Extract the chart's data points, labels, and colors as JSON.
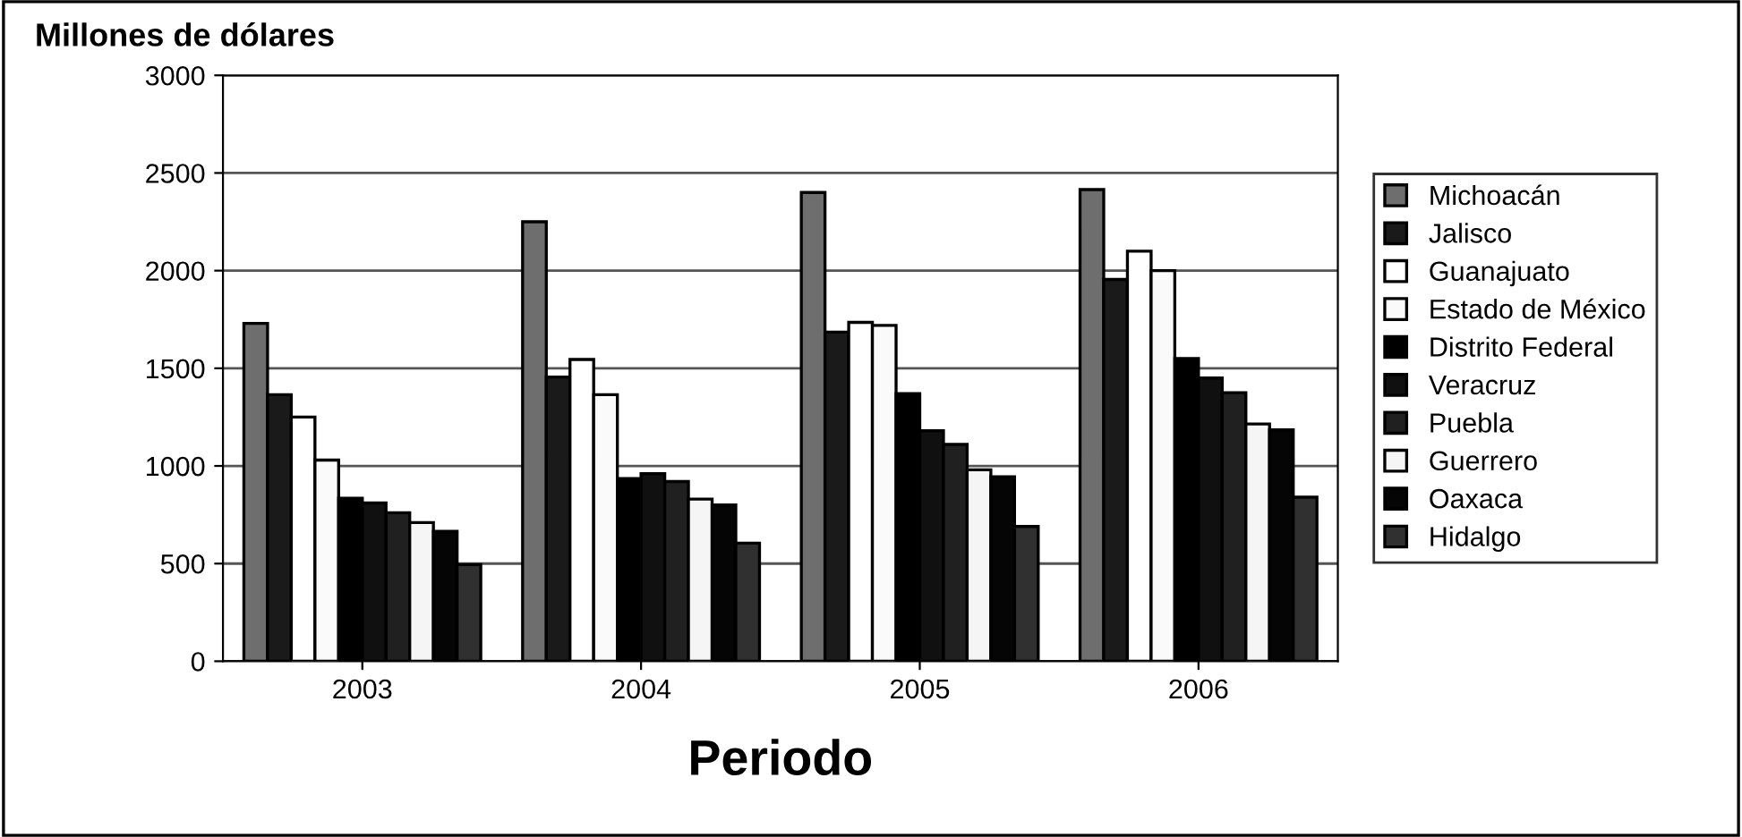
{
  "chart_data": {
    "type": "bar",
    "ylabel": "Millones de dólares",
    "xlabel": "Periodo",
    "categories": [
      "2003",
      "2004",
      "2005",
      "2006"
    ],
    "ylim": [
      0,
      3000
    ],
    "yticks": [
      0,
      500,
      1000,
      1500,
      2000,
      2500,
      3000
    ],
    "grid": "y",
    "legend": "right",
    "series": [
      {
        "name": "Michoacán",
        "color": "#6e6e6e",
        "values": [
          1730,
          2250,
          2400,
          2415
        ]
      },
      {
        "name": "Jalisco",
        "color": "#1a1a1a",
        "values": [
          1365,
          1455,
          1685,
          1955
        ]
      },
      {
        "name": "Guanajuato",
        "color": "#ffffff",
        "values": [
          1250,
          1545,
          1735,
          2100
        ]
      },
      {
        "name": "Estado de México",
        "color": "#fafafa",
        "values": [
          1030,
          1365,
          1720,
          2000
        ]
      },
      {
        "name": "Distrito Federal",
        "color": "#000000",
        "values": [
          835,
          935,
          1370,
          1550
        ]
      },
      {
        "name": "Veracruz",
        "color": "#101010",
        "values": [
          810,
          960,
          1180,
          1450
        ]
      },
      {
        "name": "Puebla",
        "color": "#202020",
        "values": [
          760,
          920,
          1110,
          1375
        ]
      },
      {
        "name": "Guerrero",
        "color": "#f5f5f5",
        "values": [
          710,
          830,
          980,
          1215
        ]
      },
      {
        "name": "Oaxaca",
        "color": "#050505",
        "values": [
          665,
          800,
          945,
          1185
        ]
      },
      {
        "name": "Hidalgo",
        "color": "#303030",
        "values": [
          495,
          605,
          690,
          840
        ]
      }
    ]
  }
}
